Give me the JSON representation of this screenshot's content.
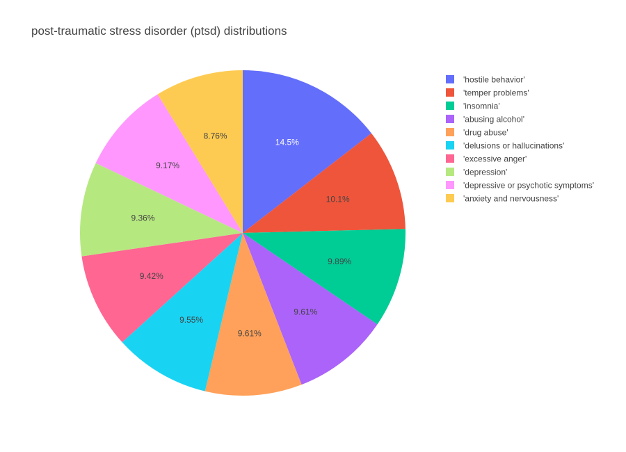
{
  "chart_data": {
    "type": "pie",
    "title": "post-traumatic stress disorder (ptsd) distributions",
    "labels": [
      "'hostile behavior'",
      "'temper problems'",
      "'insomnia'",
      "'abusing alcohol'",
      "'drug abuse'",
      "'delusions or hallucinations'",
      "'excessive anger'",
      "'depression'",
      "'depressive or psychotic symptoms'",
      "'anxiety and nervousness'"
    ],
    "values": [
      14.5,
      10.1,
      9.89,
      9.61,
      9.61,
      9.55,
      9.42,
      9.36,
      9.17,
      8.76
    ],
    "text_labels": [
      "14.5%",
      "10.1%",
      "9.89%",
      "9.61%",
      "9.61%",
      "9.55%",
      "9.42%",
      "9.36%",
      "9.17%",
      "8.76%"
    ],
    "colors": [
      "#636efa",
      "#EF553B",
      "#00cc96",
      "#ab63fa",
      "#FFA15A",
      "#19d3f3",
      "#FF6692",
      "#B6E880",
      "#FF97FF",
      "#FECB52"
    ],
    "label_colors": [
      "#ffffff",
      "#444444",
      "#444444",
      "#444444",
      "#444444",
      "#444444",
      "#444444",
      "#444444",
      "#444444",
      "#444444"
    ],
    "direction": "counterclockwise",
    "start": "top",
    "legend": "right"
  }
}
